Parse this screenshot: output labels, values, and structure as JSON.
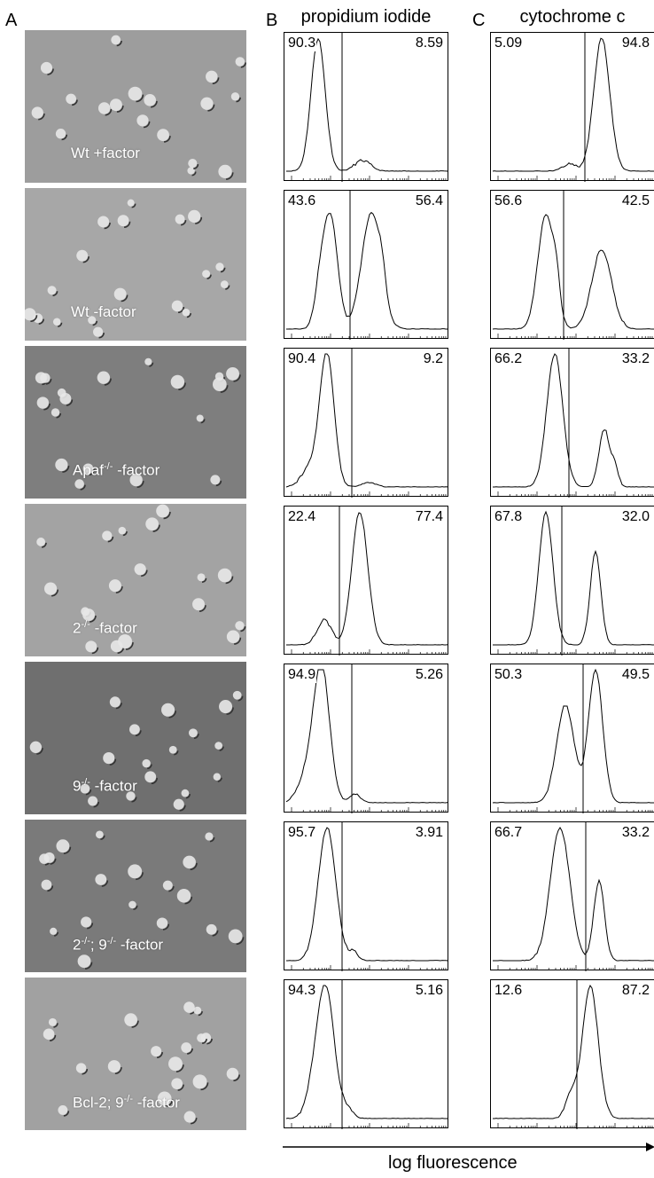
{
  "panels": {
    "a": "A",
    "b": "B",
    "c": "C"
  },
  "column_titles": {
    "b": "propidium iodide",
    "c": "cytochrome c"
  },
  "x_axis_label": "log fluorescence",
  "rows": [
    {
      "label_parts": [
        "Wt  +factor"
      ],
      "pi": {
        "left": "90.3",
        "right": "8.59"
      },
      "cyt": {
        "left": "5.09",
        "right": "94.8"
      },
      "shade": "#9d9d9d"
    },
    {
      "label_parts": [
        "Wt  -factor"
      ],
      "pi": {
        "left": "43.6",
        "right": "56.4"
      },
      "cyt": {
        "left": "56.6",
        "right": "42.5"
      },
      "shade": "#a7a7a7"
    },
    {
      "label_parts": [
        "Apaf",
        "-/-",
        "  -factor"
      ],
      "pi": {
        "left": "90.4",
        "right": "9.2"
      },
      "cyt": {
        "left": "66.2",
        "right": "33.2"
      },
      "shade": "#7e7e7e"
    },
    {
      "label_parts": [
        "2",
        "-/-",
        "  -factor"
      ],
      "pi": {
        "left": "22.4",
        "right": "77.4"
      },
      "cyt": {
        "left": "67.8",
        "right": "32.0"
      },
      "shade": "#a3a3a3"
    },
    {
      "label_parts": [
        "9",
        "-/-",
        "  -factor"
      ],
      "pi": {
        "left": "94.9",
        "right": "5.26"
      },
      "cyt": {
        "left": "50.3",
        "right": "49.5"
      },
      "shade": "#6f6f6f"
    },
    {
      "label_parts": [
        "2",
        "-/-",
        "; 9",
        "-/-",
        " -factor"
      ],
      "pi": {
        "left": "95.7",
        "right": "3.91"
      },
      "cyt": {
        "left": "66.7",
        "right": "33.2"
      },
      "shade": "#7a7a7a"
    },
    {
      "label_parts": [
        "Bcl-2; 9",
        "-/-",
        "  -factor"
      ],
      "pi": {
        "left": "94.3",
        "right": "5.16"
      },
      "cyt": {
        "left": "12.6",
        "right": "87.2"
      },
      "shade": "#a1a1a1"
    }
  ]
}
